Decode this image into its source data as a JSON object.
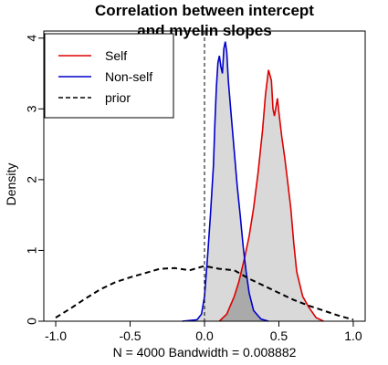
{
  "chart_data": {
    "type": "line",
    "title_line1": "Correlation between intercept",
    "title_line2": "and myelin slopes",
    "xlabel": "N = 4000   Bandwidth = 0.008882",
    "ylabel": "Density",
    "xlim": [
      -1.08,
      1.08
    ],
    "ylim": [
      0,
      4.1
    ],
    "x_ticks": [
      -1.0,
      -0.5,
      0.0,
      0.5,
      1.0
    ],
    "x_tick_labels": [
      "-1.0",
      "-0.5",
      "0.0",
      "0.5",
      "1.0"
    ],
    "y_ticks": [
      0,
      1,
      2,
      3,
      4
    ],
    "y_tick_labels": [
      "0",
      "1",
      "2",
      "3",
      "4"
    ],
    "vline_x": 0,
    "legend_position": "top-left",
    "series": [
      {
        "name": "Self",
        "color": "#dd0000",
        "style": "solid",
        "fill": "#d9d9d9",
        "points": [
          [
            0.1,
            0.0
          ],
          [
            0.15,
            0.1
          ],
          [
            0.2,
            0.35
          ],
          [
            0.23,
            0.55
          ],
          [
            0.27,
            0.9
          ],
          [
            0.3,
            1.2
          ],
          [
            0.33,
            1.6
          ],
          [
            0.36,
            2.1
          ],
          [
            0.39,
            2.7
          ],
          [
            0.41,
            3.2
          ],
          [
            0.43,
            3.55
          ],
          [
            0.45,
            3.4
          ],
          [
            0.46,
            3.0
          ],
          [
            0.47,
            2.9
          ],
          [
            0.49,
            3.15
          ],
          [
            0.5,
            2.95
          ],
          [
            0.52,
            2.6
          ],
          [
            0.54,
            2.3
          ],
          [
            0.56,
            1.95
          ],
          [
            0.58,
            1.6
          ],
          [
            0.6,
            1.1
          ],
          [
            0.62,
            0.7
          ],
          [
            0.66,
            0.35
          ],
          [
            0.7,
            0.2
          ],
          [
            0.75,
            0.05
          ],
          [
            0.8,
            0.0
          ]
        ]
      },
      {
        "name": "Non-self",
        "color": "#0000cc",
        "style": "solid",
        "fill": "#d9d9d9",
        "points": [
          [
            -0.15,
            0.0
          ],
          [
            -0.05,
            0.02
          ],
          [
            -0.02,
            0.1
          ],
          [
            0.0,
            0.35
          ],
          [
            0.02,
            0.9
          ],
          [
            0.04,
            1.5
          ],
          [
            0.06,
            2.2
          ],
          [
            0.07,
            2.8
          ],
          [
            0.08,
            3.3
          ],
          [
            0.09,
            3.65
          ],
          [
            0.1,
            3.75
          ],
          [
            0.11,
            3.6
          ],
          [
            0.12,
            3.5
          ],
          [
            0.13,
            3.85
          ],
          [
            0.14,
            3.95
          ],
          [
            0.15,
            3.8
          ],
          [
            0.16,
            3.4
          ],
          [
            0.18,
            2.9
          ],
          [
            0.2,
            2.4
          ],
          [
            0.22,
            1.9
          ],
          [
            0.24,
            1.5
          ],
          [
            0.26,
            1.05
          ],
          [
            0.28,
            0.7
          ],
          [
            0.3,
            0.4
          ],
          [
            0.33,
            0.15
          ],
          [
            0.38,
            0.03
          ],
          [
            0.43,
            0.0
          ]
        ]
      },
      {
        "name": "prior",
        "color": "#000000",
        "style": "dashed",
        "points": [
          [
            -1.0,
            0.05
          ],
          [
            -0.9,
            0.18
          ],
          [
            -0.8,
            0.32
          ],
          [
            -0.7,
            0.45
          ],
          [
            -0.6,
            0.55
          ],
          [
            -0.5,
            0.62
          ],
          [
            -0.4,
            0.68
          ],
          [
            -0.3,
            0.74
          ],
          [
            -0.2,
            0.75
          ],
          [
            -0.1,
            0.72
          ],
          [
            0.0,
            0.78
          ],
          [
            0.1,
            0.74
          ],
          [
            0.2,
            0.72
          ],
          [
            0.3,
            0.6
          ],
          [
            0.4,
            0.5
          ],
          [
            0.5,
            0.4
          ],
          [
            0.6,
            0.3
          ],
          [
            0.7,
            0.22
          ],
          [
            0.8,
            0.15
          ],
          [
            0.9,
            0.08
          ],
          [
            1.0,
            0.02
          ]
        ]
      }
    ]
  }
}
